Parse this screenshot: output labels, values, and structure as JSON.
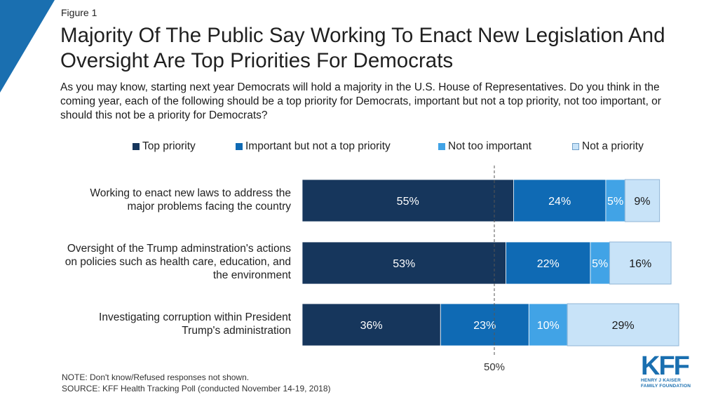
{
  "header": {
    "figure_label": "Figure 1",
    "title": "Majority Of The Public Say Working To Enact New Legislation And Oversight Are Top Priorities For Democrats",
    "subtitle": "As you may know, starting next year Democrats will hold a majority in the U.S. House of Representatives. Do you think in the coming year, each of the following should be a top priority for Democrats, important but not a top priority, not too important, or should this not be a priority for Democrats?"
  },
  "legend": [
    {
      "label": "Top priority",
      "color": "#16365c"
    },
    {
      "label": "Important but not a top priority",
      "color": "#0f6ab4"
    },
    {
      "label": "Not too important",
      "color": "#41a3e6"
    },
    {
      "label": "Not a priority",
      "color": "#c8e3f8"
    }
  ],
  "rows": [
    {
      "label": "Working to enact new laws to address the major problems facing the country"
    },
    {
      "label": "Oversight of the Trump adminstration's actions on policies such as health care, education, and the environment"
    },
    {
      "label": "Investigating corruption within President Trump's administration"
    }
  ],
  "chart_data": {
    "type": "bar",
    "orientation": "horizontal",
    "stacked": true,
    "categories": [
      "Working to enact new laws to address the major problems facing the country",
      "Oversight of the Trump adminstration's actions on policies such as health care, education, and the environment",
      "Investigating corruption within President Trump's administration"
    ],
    "series": [
      {
        "name": "Top priority",
        "values": [
          55,
          53,
          36
        ],
        "labels": [
          "55%",
          "53%",
          "36%"
        ],
        "color": "#16365c"
      },
      {
        "name": "Important but not a top priority",
        "values": [
          24,
          22,
          23
        ],
        "labels": [
          "24%",
          "22%",
          "23%"
        ],
        "color": "#0f6ab4"
      },
      {
        "name": "Not too important",
        "values": [
          5,
          5,
          10
        ],
        "labels": [
          "5%",
          "5%",
          "10%"
        ],
        "color": "#41a3e6"
      },
      {
        "name": "Not a priority",
        "values": [
          9,
          16,
          29
        ],
        "labels": [
          "9%",
          "16%",
          "29%"
        ],
        "color": "#c8e3f8"
      }
    ],
    "reference_line": {
      "value": 50,
      "label": "50%"
    },
    "xlim": [
      0,
      100
    ],
    "legend_position": "top",
    "grid": false
  },
  "footer": {
    "note": "NOTE: Don't know/Refused responses not shown.",
    "source": "SOURCE: KFF Health Tracking Poll (conducted November 14-19, 2018)"
  },
  "logo": {
    "mark": "KFF",
    "line1": "HENRY J KAISER",
    "line2": "FAMILY FOUNDATION"
  }
}
